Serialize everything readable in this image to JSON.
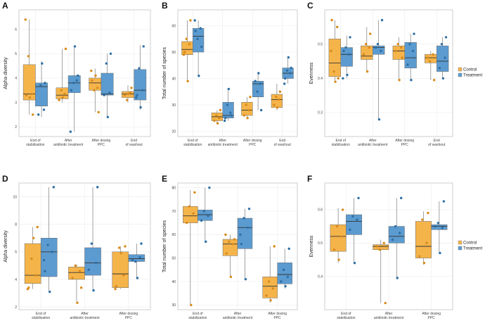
{
  "colors": {
    "Control": "#f5b44a",
    "Treatment": "#5b9bd0",
    "control_point": "#d98b1c",
    "treatment_point": "#2e6fa6",
    "grid": "#ececec",
    "panel_border": "#b0b0b0"
  },
  "legend": {
    "entries": [
      "Control",
      "Treatment"
    ]
  },
  "chart_data": [
    {
      "panel": "A",
      "type": "box",
      "ylabel": "Alpha diversity",
      "ylim": [
        1.6,
        6.8
      ],
      "yticks": [
        2,
        3,
        4,
        5,
        6
      ],
      "categories": [
        "End of\nstabilisation",
        "After\nantibiotic treatment",
        "After dosing\nPPC",
        "End\nof washout"
      ],
      "series": [
        {
          "name": "Control",
          "boxes": [
            {
              "q1": 3.1,
              "median": 3.35,
              "q3": 4.55,
              "lo": 2.5,
              "hi": 6.4,
              "points": [
                3.3,
                3.35,
                4.9,
                2.5,
                3.2,
                6.4
              ]
            },
            {
              "q1": 3.15,
              "median": 3.3,
              "q3": 3.6,
              "lo": 3.0,
              "hi": 5.2,
              "points": [
                3.1,
                3.35,
                3.5,
                5.2,
                3.2
              ]
            },
            {
              "q1": 3.5,
              "median": 3.8,
              "q3": 4.0,
              "lo": 2.6,
              "hi": 4.4,
              "points": [
                3.9,
                3.6,
                3.5,
                2.6,
                4.1,
                4.3
              ]
            },
            {
              "q1": 3.2,
              "median": 3.35,
              "q3": 3.45,
              "lo": 3.0,
              "hi": 3.7,
              "points": [
                3.3,
                3.4,
                3.1,
                3.6,
                3.35
              ]
            }
          ]
        },
        {
          "name": "Treatment",
          "boxes": [
            {
              "q1": 2.85,
              "median": 3.65,
              "q3": 3.8,
              "lo": 2.4,
              "hi": 4.7,
              "points": [
                2.5,
                2.7,
                3.7,
                3.8,
                4.6
              ]
            },
            {
              "q1": 3.4,
              "median": 3.8,
              "q3": 4.1,
              "lo": 1.8,
              "hi": 5.3,
              "points": [
                3.5,
                3.9,
                3.8,
                4.1,
                5.3,
                1.8
              ]
            },
            {
              "q1": 3.3,
              "median": 3.35,
              "q3": 4.2,
              "lo": 2.4,
              "hi": 5.0,
              "points": [
                3.3,
                3.4,
                4.6,
                5.0,
                2.4
              ]
            },
            {
              "q1": 3.1,
              "median": 3.5,
              "q3": 4.35,
              "lo": 2.7,
              "hi": 5.35,
              "points": [
                3.3,
                3.5,
                4.4,
                5.3,
                2.8,
                3.2
              ]
            }
          ]
        }
      ]
    },
    {
      "panel": "B",
      "type": "box",
      "ylabel": "Total number of species",
      "ylim": [
        18,
        66
      ],
      "yticks": [
        20,
        30,
        40,
        50,
        60
      ],
      "categories": [
        "End of\nstabilisation",
        "After\nantibiotic treatment",
        "After dosing\nPPC",
        "End\nof washout"
      ],
      "series": [
        {
          "name": "Control",
          "boxes": [
            {
              "q1": 49,
              "median": 51,
              "q3": 54,
              "lo": 39,
              "hi": 62,
              "points": [
                50,
                53,
                55,
                62,
                39,
                49
              ]
            },
            {
              "q1": 24,
              "median": 25.5,
              "q3": 27,
              "lo": 23,
              "hi": 28,
              "points": [
                24,
                25,
                26,
                28,
                23
              ]
            },
            {
              "q1": 26,
              "median": 28,
              "q3": 31,
              "lo": 25,
              "hi": 33,
              "points": [
                26,
                28,
                30,
                33,
                25
              ]
            },
            {
              "q1": 29,
              "median": 32,
              "q3": 34,
              "lo": 28,
              "hi": 38,
              "points": [
                30,
                32,
                33,
                35,
                29
              ]
            }
          ]
        },
        {
          "name": "Treatment",
          "boxes": [
            {
              "q1": 50,
              "median": 56,
              "q3": 59,
              "lo": 41,
              "hi": 62,
              "points": [
                58,
                59,
                55,
                52,
                41,
                62
              ]
            },
            {
              "q1": 25,
              "median": 26,
              "q3": 31,
              "lo": 24,
              "hi": 36,
              "points": [
                25,
                27,
                30,
                26,
                36,
                24
              ]
            },
            {
              "q1": 33,
              "median": 38,
              "q3": 39,
              "lo": 28,
              "hi": 42,
              "points": [
                39,
                38,
                35,
                28,
                42
              ]
            },
            {
              "q1": 40,
              "median": 42,
              "q3": 44,
              "lo": 38,
              "hi": 48,
              "points": [
                40,
                42,
                43,
                44,
                48,
                38
              ]
            }
          ]
        }
      ]
    },
    {
      "panel": "C",
      "type": "box",
      "ylabel": "Evenness",
      "ylim": [
        0.23,
        0.6
      ],
      "yticks": [
        0.3,
        0.4,
        0.5
      ],
      "categories": [
        "End of\nstabilisation",
        "After\nantibiotic treatment",
        "After dosing\nPPC",
        "End\nof washout"
      ],
      "series": [
        {
          "name": "Control",
          "boxes": [
            {
              "q1": 0.405,
              "median": 0.445,
              "q3": 0.515,
              "lo": 0.39,
              "hi": 0.57,
              "points": [
                0.57,
                0.55,
                0.42,
                0.4,
                0.39,
                0.48
              ]
            },
            {
              "q1": 0.455,
              "median": 0.465,
              "q3": 0.495,
              "lo": 0.42,
              "hi": 0.55,
              "points": [
                0.47,
                0.49,
                0.5,
                0.53,
                0.42
              ]
            },
            {
              "q1": 0.455,
              "median": 0.48,
              "q3": 0.495,
              "lo": 0.395,
              "hi": 0.52,
              "points": [
                0.48,
                0.49,
                0.5,
                0.46,
                0.395
              ]
            },
            {
              "q1": 0.445,
              "median": 0.46,
              "q3": 0.47,
              "lo": 0.395,
              "hi": 0.48,
              "points": [
                0.46,
                0.47,
                0.45,
                0.395
              ]
            }
          ]
        },
        {
          "name": "Treatment",
          "boxes": [
            {
              "q1": 0.435,
              "median": 0.47,
              "q3": 0.49,
              "lo": 0.4,
              "hi": 0.525,
              "points": [
                0.48,
                0.47,
                0.49,
                0.52,
                0.41,
                0.4
              ]
            },
            {
              "q1": 0.47,
              "median": 0.49,
              "q3": 0.495,
              "lo": 0.28,
              "hi": 0.57,
              "points": [
                0.49,
                0.48,
                0.5,
                0.57,
                0.28
              ]
            },
            {
              "q1": 0.43,
              "median": 0.46,
              "q3": 0.505,
              "lo": 0.395,
              "hi": 0.53,
              "points": [
                0.44,
                0.48,
                0.5,
                0.53,
                0.395
              ]
            },
            {
              "q1": 0.42,
              "median": 0.45,
              "q3": 0.495,
              "lo": 0.4,
              "hi": 0.52,
              "points": [
                0.43,
                0.46,
                0.5,
                0.52,
                0.4
              ]
            }
          ]
        }
      ]
    },
    {
      "panel": "D",
      "type": "box",
      "ylabel": "Alpha diversity",
      "ylim": [
        1.8,
        11.0
      ],
      "yticks": [
        2,
        4,
        6,
        8,
        10
      ],
      "categories": [
        "End of\nstabilisation",
        "After\nantibiotic treatment",
        "After dosing\nPPC"
      ],
      "series": [
        {
          "name": "Control",
          "boxes": [
            {
              "q1": 3.7,
              "median": 4.3,
              "q3": 6.6,
              "lo": 3.3,
              "hi": 7.8,
              "points": [
                3.4,
                4.3,
                5.5,
                7.8,
                7.0,
                3.3
              ]
            },
            {
              "q1": 4.0,
              "median": 4.5,
              "q3": 4.9,
              "lo": 2.3,
              "hi": 5.1,
              "points": [
                4.1,
                4.6,
                5.0,
                3.4,
                2.3
              ]
            },
            {
              "q1": 3.4,
              "median": 4.4,
              "q3": 6.0,
              "lo": 3.3,
              "hi": 6.4,
              "points": [
                3.5,
                4.3,
                6.3,
                6.4,
                5.9,
                3.3
              ]
            }
          ]
        },
        {
          "name": "Treatment",
          "boxes": [
            {
              "q1": 4.2,
              "median": 6.0,
              "q3": 7.0,
              "lo": 3.1,
              "hi": 10.7,
              "points": [
                4.6,
                6.0,
                6.5,
                10.7,
                3.1,
                5.4
              ]
            },
            {
              "q1": 4.3,
              "median": 5.2,
              "q3": 6.3,
              "lo": 3.2,
              "hi": 10.7,
              "points": [
                4.7,
                5.2,
                6.6,
                10.7,
                3.2
              ]
            },
            {
              "q1": 5.3,
              "median": 5.5,
              "q3": 5.8,
              "lo": 4.1,
              "hi": 6.6,
              "points": [
                5.4,
                5.6,
                5.3,
                6.6,
                4.1
              ]
            }
          ]
        }
      ]
    },
    {
      "panel": "E",
      "type": "box",
      "ylabel": "Total number of species",
      "ylim": [
        28,
        82
      ],
      "yticks": [
        30,
        40,
        50,
        60,
        70,
        80
      ],
      "categories": [
        "End of\nstabilisation",
        "After\nantibiotic treatment",
        "After dosing\nPPC"
      ],
      "series": [
        {
          "name": "Control",
          "boxes": [
            {
              "q1": 65,
              "median": 68,
              "q3": 72,
              "lo": 30,
              "hi": 79,
              "points": [
                65,
                69,
                72,
                78,
                30
              ]
            },
            {
              "q1": 51,
              "median": 56,
              "q3": 58,
              "lo": 42,
              "hi": 60,
              "points": [
                52,
                56,
                57,
                58,
                42,
                60
              ]
            },
            {
              "q1": 33,
              "median": 38,
              "q3": 42,
              "lo": 31,
              "hi": 55,
              "points": [
                34,
                37,
                40,
                55,
                32
              ]
            }
          ]
        },
        {
          "name": "Treatment",
          "boxes": [
            {
              "q1": 66,
              "median": 68.5,
              "q3": 70.5,
              "lo": 57,
              "hi": 80,
              "points": [
                66,
                68,
                70,
                80,
                57
              ]
            },
            {
              "q1": 54,
              "median": 63,
              "q3": 67,
              "lo": 41,
              "hi": 71,
              "points": [
                56,
                63,
                67,
                71,
                41,
                60
              ]
            },
            {
              "q1": 39,
              "median": 43,
              "q3": 48,
              "lo": 37,
              "hi": 54,
              "points": [
                40,
                42,
                45,
                54,
                38
              ]
            }
          ]
        }
      ]
    },
    {
      "panel": "F",
      "type": "box",
      "ylabel": "Evenness",
      "ylim": [
        0.3,
        0.68
      ],
      "yticks": [
        0.4,
        0.5,
        0.6
      ],
      "categories": [
        "End of\nstabilisation",
        "After\nantibiotic treatment",
        "After dosing\nPPC"
      ],
      "series": [
        {
          "name": "Control",
          "boxes": [
            {
              "q1": 0.475,
              "median": 0.52,
              "q3": 0.555,
              "lo": 0.44,
              "hi": 0.605,
              "points": [
                0.48,
                0.52,
                0.55,
                0.6,
                0.45
              ]
            },
            {
              "q1": 0.48,
              "median": 0.49,
              "q3": 0.495,
              "lo": 0.32,
              "hi": 0.51,
              "points": [
                0.49,
                0.5,
                0.48,
                0.32
              ]
            },
            {
              "q1": 0.455,
              "median": 0.49,
              "q3": 0.565,
              "lo": 0.435,
              "hi": 0.595,
              "points": [
                0.46,
                0.5,
                0.57,
                0.59,
                0.44
              ]
            }
          ]
        },
        {
          "name": "Treatment",
          "boxes": [
            {
              "q1": 0.525,
              "median": 0.565,
              "q3": 0.585,
              "lo": 0.44,
              "hi": 0.635,
              "points": [
                0.54,
                0.57,
                0.58,
                0.635,
                0.44
              ]
            },
            {
              "q1": 0.5,
              "median": 0.52,
              "q3": 0.55,
              "lo": 0.395,
              "hi": 0.635,
              "points": [
                0.51,
                0.53,
                0.55,
                0.635,
                0.395
              ]
            },
            {
              "q1": 0.54,
              "median": 0.55,
              "q3": 0.555,
              "lo": 0.47,
              "hi": 0.625,
              "points": [
                0.55,
                0.545,
                0.56,
                0.625,
                0.47
              ]
            }
          ]
        }
      ]
    }
  ]
}
